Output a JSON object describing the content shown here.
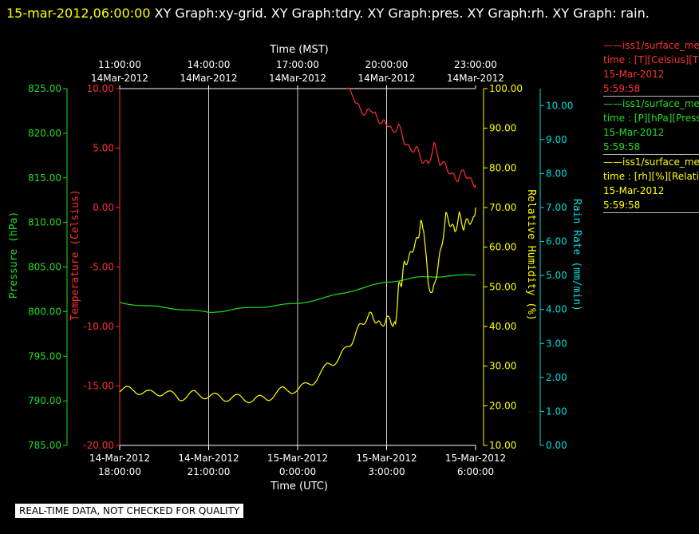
{
  "header": {
    "timestamp": "15-mar-2012,06:00:00",
    "graphs": "XY Graph:xy-grid.  XY Graph:tdry.  XY Graph:pres.  XY Graph:rh.  XY Graph: rain."
  },
  "legend": [
    {
      "line1": "——iss1/surface_me",
      "line2": "time : [T][Celsius][T",
      "line3": "15-Mar-2012",
      "line4": "5:59:58",
      "color": "#ff3030"
    },
    {
      "line1": "——iss1/surface_me",
      "line2": "time : [P][hPa][Press",
      "line3": "15-Mar-2012",
      "line4": "5:59:58",
      "color": "#22dd22"
    },
    {
      "line1": "——iss1/surface_me",
      "line2": "time : [rh][%][Relati",
      "line3": "15-Mar-2012",
      "line4": "5:59:58",
      "color": "#ffff00"
    }
  ],
  "notice": "REAL-TIME DATA, NOT CHECKED FOR QUALITY",
  "chart_data": {
    "type": "line",
    "x_top": {
      "label": "Time (MST)",
      "ticks": [
        {
          "t": 0,
          "l1": "11:00:00",
          "l2": "14Mar-2012"
        },
        {
          "t": 3,
          "l1": "14:00:00",
          "l2": "14Mar-2012"
        },
        {
          "t": 6,
          "l1": "17:00:00",
          "l2": "14Mar-2012"
        },
        {
          "t": 9,
          "l1": "20:00:00",
          "l2": "14Mar-2012"
        },
        {
          "t": 12,
          "l1": "23:00:00",
          "l2": "14Mar-2012"
        }
      ]
    },
    "x_bottom": {
      "label": "Time (UTC)",
      "ticks": [
        {
          "t": 0,
          "l1": "14-Mar-2012",
          "l2": "18:00:00"
        },
        {
          "t": 3,
          "l1": "14-Mar-2012",
          "l2": "21:00:00"
        },
        {
          "t": 6,
          "l1": "15-Mar-2012",
          "l2": "0:00:00"
        },
        {
          "t": 9,
          "l1": "15-Mar-2012",
          "l2": "3:00:00"
        },
        {
          "t": 12,
          "l1": "15-Mar-2012",
          "l2": "6:00:00"
        }
      ]
    },
    "axes": {
      "pressure": {
        "label": "Pressure (hPa)",
        "color": "#22dd22",
        "min": 785,
        "max": 825,
        "ticks": [
          "785.00",
          "790.00",
          "795.00",
          "800.00",
          "805.00",
          "810.00",
          "815.00",
          "820.00",
          "825.00"
        ]
      },
      "temperature": {
        "label": "Temperature (Celsius)",
        "color": "#ff3030",
        "min": -20,
        "max": 10,
        "ticks": [
          "-20.00",
          "-15.00",
          "-10.00",
          "-5.00",
          "0.00",
          "5.00",
          "10.00"
        ]
      },
      "rh": {
        "label": "Relative Humidity (%)",
        "color": "#ffff00",
        "min": 10,
        "max": 100,
        "ticks": [
          "10.00",
          "20.00",
          "30.00",
          "40.00",
          "50.00",
          "60.00",
          "70.00",
          "80.00",
          "90.00",
          "100.00"
        ]
      },
      "rain": {
        "label": "Rain Rate (mm/min)",
        "color": "#00dddd",
        "min": 0,
        "max": 10.5,
        "ticks": [
          "0.00",
          "1.00",
          "2.00",
          "3.00",
          "4.00",
          "5.00",
          "6.00",
          "7.00",
          "8.00",
          "9.00",
          "10.00"
        ]
      }
    },
    "grid": true,
    "series": [
      {
        "axis": "temperature",
        "color": "#ff3030",
        "x": [
          7.65,
          7.9,
          8.1,
          8.3,
          8.5,
          8.65,
          8.85,
          9.0,
          9.2,
          9.4,
          9.6,
          9.8,
          10.0,
          10.2,
          10.4,
          10.6,
          10.8,
          11.0,
          11.2,
          11.4,
          11.6,
          11.8,
          12.0
        ],
        "y": [
          10.0,
          9.3,
          8.2,
          7.9,
          8.3,
          7.6,
          7.1,
          7.2,
          6.3,
          6.9,
          5.6,
          4.8,
          5.0,
          4.0,
          3.6,
          5.3,
          3.8,
          3.5,
          2.7,
          2.4,
          3.1,
          2.3,
          1.9
        ]
      },
      {
        "axis": "pressure",
        "color": "#22dd22",
        "x": [
          0,
          1,
          2,
          3,
          4,
          5,
          6,
          7,
          8,
          9,
          10,
          11,
          12
        ],
        "y": [
          801.0,
          800.6,
          800.3,
          799.9,
          800.3,
          800.6,
          800.9,
          801.6,
          802.5,
          803.3,
          803.8,
          804.0,
          804.1
        ]
      },
      {
        "axis": "rh",
        "color": "#ffff00",
        "x": [
          0,
          0.5,
          1.0,
          1.5,
          2.0,
          2.5,
          3.0,
          3.5,
          4.0,
          4.5,
          5.0,
          5.5,
          6.0,
          6.5,
          7.0,
          7.4,
          7.8,
          8.1,
          8.4,
          8.6,
          8.8,
          9.0,
          9.2,
          9.3,
          9.4,
          9.5,
          9.6,
          9.75,
          9.9,
          10.05,
          10.15,
          10.25,
          10.4,
          10.55,
          10.7,
          10.85,
          11.0,
          11.15,
          11.3,
          11.45,
          11.6,
          11.75,
          11.9,
          12.0
        ],
        "y": [
          24,
          24,
          23,
          23.5,
          22,
          23,
          22.5,
          22,
          22,
          21.5,
          22,
          24,
          24,
          26,
          30,
          32,
          36,
          40,
          43,
          42,
          40,
          42,
          41,
          40,
          50,
          51,
          56,
          57,
          60,
          62,
          66,
          65,
          51,
          48,
          54,
          60,
          68,
          66,
          64,
          68,
          65,
          67,
          66,
          70
        ]
      }
    ]
  }
}
